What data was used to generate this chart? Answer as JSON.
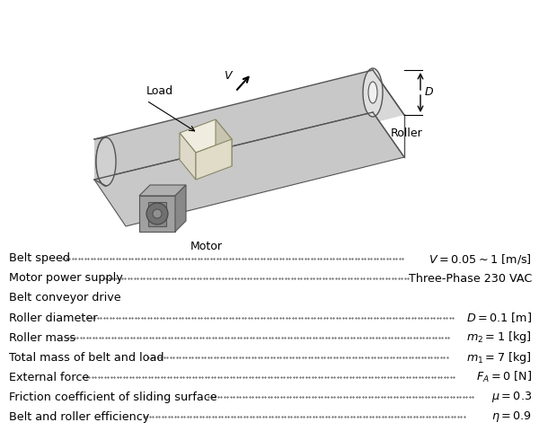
{
  "background_color": "#ffffff",
  "belt_fill": "#d8d8d8",
  "belt_edge": "#555555",
  "belt_top_fill": "#e8e8e8",
  "load_top": "#f0ece0",
  "load_side1": "#ddd8c8",
  "load_side2": "#ccc8b8",
  "motor_fill": "#909090",
  "motor_dark": "#707070",
  "parameters": [
    {
      "label": "Belt speed",
      "key": "V",
      "value_latex": "$V = 0.05{\\sim}1$ [m/s]"
    },
    {
      "label": "Motor power supply",
      "key": null,
      "value_latex": "Three-Phase 230 VAC"
    },
    {
      "label": "Belt conveyor drive",
      "key": null,
      "value_latex": null
    },
    {
      "label": "Roller diameter",
      "key": "D",
      "value_latex": "$D = 0.1$ [m]"
    },
    {
      "label": "Roller mass",
      "key": "m2",
      "value_latex": "$m_2 = 1$ [kg]"
    },
    {
      "label": "Total mass of belt and load",
      "key": "m1",
      "value_latex": "$m_1 = 7$ [kg]"
    },
    {
      "label": "External force",
      "key": "FA",
      "value_latex": "$F_A = 0$ [N]"
    },
    {
      "label": "Friction coefficient of sliding surface",
      "key": "mu",
      "value_latex": "$\\mu = 0.3$"
    },
    {
      "label": "Belt and roller efficiency",
      "key": "eta",
      "value_latex": "$\\eta = 0.9$"
    }
  ]
}
